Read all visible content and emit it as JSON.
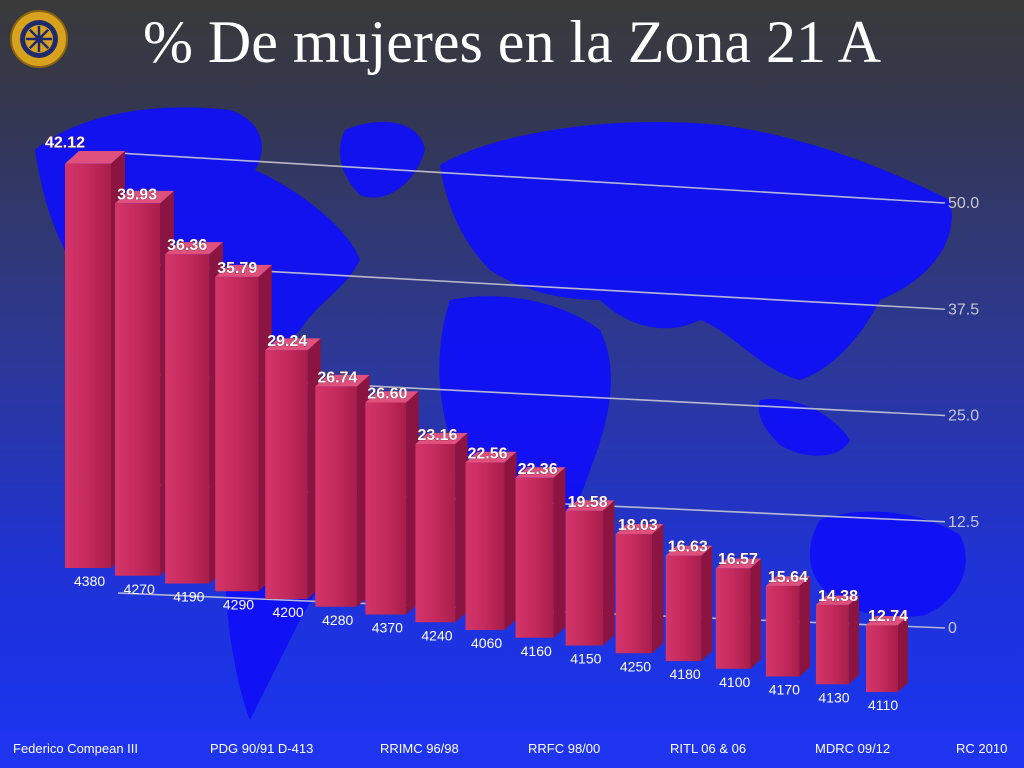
{
  "title": "% De mujeres en la Zona 21 A",
  "logo": {
    "icon": "rotary-wheel-icon"
  },
  "colors": {
    "bar": "#c8285e",
    "bar_top": "#e0507d",
    "bar_side": "#8c1440",
    "map": "#1010f5",
    "gridline": "#c8c8d2",
    "tick_text": "#c6c8d8"
  },
  "chart_data": {
    "type": "bar",
    "categories": [
      "4380",
      "4270",
      "4190",
      "4290",
      "4200",
      "4280",
      "4370",
      "4240",
      "4060",
      "4160",
      "4150",
      "4250",
      "4180",
      "4100",
      "4170",
      "4130",
      "4110"
    ],
    "values": [
      42.12,
      39.93,
      36.36,
      35.79,
      29.24,
      26.74,
      26.6,
      23.16,
      22.56,
      22.36,
      19.58,
      18.03,
      16.63,
      16.57,
      15.64,
      14.38,
      12.74
    ],
    "value_labels": [
      "42.12",
      "39.93",
      "36.36",
      "35.79",
      "29.24",
      "26.74",
      "26.60",
      "23.16",
      "22.56",
      "22.36",
      "19.58",
      "18.03",
      "16.63",
      "16.57",
      "15.64",
      "14.38",
      "12.74"
    ],
    "yticks": [
      0,
      12.5,
      25.0,
      37.5,
      50.0
    ],
    "ytick_labels": [
      "0",
      "12.5",
      "25.0",
      "37.5",
      "50.0"
    ],
    "ylim": [
      0,
      50
    ],
    "grid": true,
    "legend": "none"
  },
  "footer": [
    "Federico Compean III",
    "PDG 90/91 D-413",
    "RRIMC 96/98",
    "RRFC 98/00",
    "RITL 06 & 06",
    "MDRC 09/12",
    "RC 2010"
  ]
}
